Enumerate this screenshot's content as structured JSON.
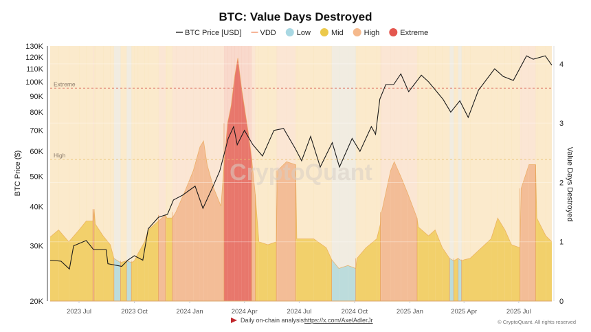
{
  "chart_data": {
    "type": "area",
    "title": "BTC: Value Days Destroyed",
    "legend": [
      {
        "label": "BTC Price [USD]",
        "color": "#111111",
        "kind": "line"
      },
      {
        "label": "VDD",
        "color": "#f08a5d",
        "kind": "line"
      },
      {
        "label": "Low",
        "color": "#a9d8e3",
        "kind": "dot"
      },
      {
        "label": "Mid",
        "color": "#ecc94b",
        "kind": "dot"
      },
      {
        "label": "High",
        "color": "#f5b98c",
        "kind": "dot"
      },
      {
        "label": "Extreme",
        "color": "#e4574f",
        "kind": "dot"
      }
    ],
    "legend_position": "top",
    "category_colors": {
      "low": "#bcdcdc",
      "mid": "#f2d06b",
      "high": "#f3bd97",
      "extreme": "#e8776c"
    },
    "background_color": "#fdf0e2",
    "y_left": {
      "label": "BTC Price ($)",
      "scale": "log",
      "range": [
        20000,
        130000
      ],
      "ticks": [
        "20K",
        "30K",
        "40K",
        "50K",
        "60K",
        "70K",
        "80K",
        "90K",
        "100K",
        "110K",
        "120K",
        "130K"
      ],
      "tick_values": [
        20000,
        30000,
        40000,
        50000,
        60000,
        70000,
        80000,
        90000,
        100000,
        110000,
        120000,
        130000
      ]
    },
    "y_right": {
      "label": "Value Days Destroyed",
      "range": [
        0,
        4.3
      ],
      "ticks": [
        "0",
        "1",
        "2",
        "3",
        "4"
      ],
      "tick_values": [
        0,
        1,
        2,
        3,
        4
      ]
    },
    "x": {
      "range": [
        "2023-05-14",
        "2025-08-25"
      ],
      "ticks": [
        "2023 Jul",
        "2023 Oct",
        "2024 Jan",
        "2024 Apr",
        "2024 Jul",
        "2024 Oct",
        "2025 Jan",
        "2025 Apr",
        "2025 Jul"
      ],
      "tick_dates": [
        "2023-07-01",
        "2023-10-01",
        "2024-01-01",
        "2024-04-01",
        "2024-07-01",
        "2024-10-01",
        "2025-01-01",
        "2025-04-01",
        "2025-07-01"
      ]
    },
    "reference_lines": [
      {
        "label": "Extreme",
        "value": 3.59,
        "color": "#e07a6a"
      },
      {
        "label": "High",
        "value": 2.39,
        "color": "#e8c070"
      }
    ],
    "watermark": "CryptoQuant",
    "series": [
      {
        "name": "BTC Price [USD]",
        "points": [
          [
            "2023-05-14",
            27000
          ],
          [
            "2023-06-01",
            26800
          ],
          [
            "2023-06-15",
            25300
          ],
          [
            "2023-06-22",
            30000
          ],
          [
            "2023-07-13",
            31200
          ],
          [
            "2023-07-25",
            29200
          ],
          [
            "2023-08-15",
            29200
          ],
          [
            "2023-08-18",
            26300
          ],
          [
            "2023-09-10",
            25800
          ],
          [
            "2023-09-20",
            27000
          ],
          [
            "2023-10-01",
            27900
          ],
          [
            "2023-10-15",
            27000
          ],
          [
            "2023-10-24",
            34000
          ],
          [
            "2023-11-10",
            37000
          ],
          [
            "2023-11-25",
            37800
          ],
          [
            "2023-12-05",
            42000
          ],
          [
            "2023-12-20",
            43500
          ],
          [
            "2024-01-10",
            46500
          ],
          [
            "2024-01-23",
            39500
          ],
          [
            "2024-02-10",
            47000
          ],
          [
            "2024-02-20",
            52000
          ],
          [
            "2024-03-05",
            66000
          ],
          [
            "2024-03-14",
            72000
          ],
          [
            "2024-03-20",
            63000
          ],
          [
            "2024-04-01",
            70000
          ],
          [
            "2024-04-15",
            63000
          ],
          [
            "2024-05-01",
            58000
          ],
          [
            "2024-05-20",
            70000
          ],
          [
            "2024-06-05",
            71000
          ],
          [
            "2024-06-25",
            61000
          ],
          [
            "2024-07-05",
            56000
          ],
          [
            "2024-07-20",
            67000
          ],
          [
            "2024-08-05",
            53500
          ],
          [
            "2024-08-25",
            64000
          ],
          [
            "2024-09-06",
            53500
          ],
          [
            "2024-09-27",
            66000
          ],
          [
            "2024-10-10",
            60000
          ],
          [
            "2024-10-29",
            72000
          ],
          [
            "2024-11-05",
            68000
          ],
          [
            "2024-11-12",
            88000
          ],
          [
            "2024-11-22",
            98000
          ],
          [
            "2024-12-05",
            98000
          ],
          [
            "2024-12-17",
            106000
          ],
          [
            "2024-12-30",
            93000
          ],
          [
            "2025-01-20",
            105000
          ],
          [
            "2025-02-01",
            100000
          ],
          [
            "2025-02-25",
            88000
          ],
          [
            "2025-03-10",
            80000
          ],
          [
            "2025-03-25",
            87000
          ],
          [
            "2025-04-08",
            77000
          ],
          [
            "2025-04-25",
            94000
          ],
          [
            "2025-05-22",
            110000
          ],
          [
            "2025-06-05",
            104000
          ],
          [
            "2025-06-22",
            101000
          ],
          [
            "2025-07-14",
            121000
          ],
          [
            "2025-07-25",
            118000
          ],
          [
            "2025-08-14",
            121000
          ],
          [
            "2025-08-25",
            113000
          ]
        ]
      },
      {
        "name": "VDD",
        "points": [
          [
            "2023-05-14",
            1.08,
            "mid"
          ],
          [
            "2023-05-28",
            1.2,
            "mid"
          ],
          [
            "2023-06-14",
            1.0,
            "mid"
          ],
          [
            "2023-07-01",
            1.2,
            "mid"
          ],
          [
            "2023-07-13",
            1.35,
            "mid"
          ],
          [
            "2023-07-24",
            1.35,
            "mid"
          ],
          [
            "2023-07-26",
            1.55,
            "high"
          ],
          [
            "2023-07-28",
            1.3,
            "mid"
          ],
          [
            "2023-08-10",
            1.1,
            "mid"
          ],
          [
            "2023-08-22",
            0.95,
            "mid"
          ],
          [
            "2023-08-28",
            0.72,
            "mid"
          ],
          [
            "2023-09-08",
            0.65,
            "low"
          ],
          [
            "2023-09-18",
            0.68,
            "mid"
          ],
          [
            "2023-09-26",
            0.65,
            "low"
          ],
          [
            "2023-10-01",
            0.68,
            "mid"
          ],
          [
            "2023-10-07",
            0.8,
            "mid"
          ],
          [
            "2023-10-18",
            1.0,
            "mid"
          ],
          [
            "2023-10-24",
            1.2,
            "mid"
          ],
          [
            "2023-11-10",
            1.35,
            "mid"
          ],
          [
            "2023-11-22",
            1.45,
            "high"
          ],
          [
            "2023-11-24",
            1.4,
            "mid"
          ],
          [
            "2023-12-03",
            1.4,
            "mid"
          ],
          [
            "2023-12-09",
            1.5,
            "high"
          ],
          [
            "2023-12-26",
            1.9,
            "high"
          ],
          [
            "2024-01-07",
            2.2,
            "high"
          ],
          [
            "2024-01-18",
            2.6,
            "high"
          ],
          [
            "2024-01-24",
            2.7,
            "high"
          ],
          [
            "2024-01-30",
            2.3,
            "high"
          ],
          [
            "2024-02-10",
            1.9,
            "high"
          ],
          [
            "2024-02-22",
            1.6,
            "high"
          ],
          [
            "2024-02-27",
            2.3,
            "high"
          ],
          [
            "2024-03-04",
            3.0,
            "extreme"
          ],
          [
            "2024-03-10",
            3.3,
            "extreme"
          ],
          [
            "2024-03-16",
            3.8,
            "extreme"
          ],
          [
            "2024-03-21",
            4.1,
            "extreme"
          ],
          [
            "2024-03-27",
            3.6,
            "extreme"
          ],
          [
            "2024-04-02",
            3.2,
            "extreme"
          ],
          [
            "2024-04-08",
            2.8,
            "extreme"
          ],
          [
            "2024-04-13",
            2.4,
            "extreme"
          ],
          [
            "2024-04-19",
            1.8,
            "high"
          ],
          [
            "2024-04-25",
            1.0,
            "mid"
          ],
          [
            "2024-05-10",
            0.95,
            "mid"
          ],
          [
            "2024-05-24",
            1.0,
            "mid"
          ],
          [
            "2024-05-26",
            2.2,
            "high"
          ],
          [
            "2024-06-10",
            2.35,
            "high"
          ],
          [
            "2024-06-25",
            2.3,
            "high"
          ],
          [
            "2024-06-27",
            1.05,
            "mid"
          ],
          [
            "2024-07-25",
            1.05,
            "mid"
          ],
          [
            "2024-08-15",
            0.9,
            "mid"
          ],
          [
            "2024-08-24",
            0.7,
            "mid"
          ],
          [
            "2024-09-05",
            0.55,
            "low"
          ],
          [
            "2024-09-20",
            0.6,
            "low"
          ],
          [
            "2024-10-03",
            0.55,
            "low"
          ],
          [
            "2024-10-05",
            0.72,
            "mid"
          ],
          [
            "2024-10-20",
            0.9,
            "mid"
          ],
          [
            "2024-11-07",
            1.05,
            "mid"
          ],
          [
            "2024-11-13",
            1.3,
            "mid"
          ],
          [
            "2024-11-15",
            1.5,
            "high"
          ],
          [
            "2024-11-30",
            2.2,
            "high"
          ],
          [
            "2024-12-06",
            2.35,
            "high"
          ],
          [
            "2024-12-17",
            2.1,
            "high"
          ],
          [
            "2024-12-29",
            1.8,
            "high"
          ],
          [
            "2025-01-13",
            1.4,
            "high"
          ],
          [
            "2025-01-15",
            1.25,
            "mid"
          ],
          [
            "2025-02-01",
            1.1,
            "mid"
          ],
          [
            "2025-02-12",
            1.2,
            "mid"
          ],
          [
            "2025-02-24",
            0.9,
            "mid"
          ],
          [
            "2025-03-08",
            0.72,
            "mid"
          ],
          [
            "2025-03-15",
            0.68,
            "low"
          ],
          [
            "2025-03-22",
            0.72,
            "mid"
          ],
          [
            "2025-03-28",
            0.68,
            "low"
          ],
          [
            "2025-04-02",
            0.7,
            "mid"
          ],
          [
            "2025-04-11",
            0.72,
            "mid"
          ],
          [
            "2025-05-16",
            1.05,
            "mid"
          ],
          [
            "2025-05-27",
            1.4,
            "mid"
          ],
          [
            "2025-06-08",
            1.2,
            "mid"
          ],
          [
            "2025-06-19",
            0.95,
            "mid"
          ],
          [
            "2025-07-03",
            0.9,
            "mid"
          ],
          [
            "2025-07-05",
            1.9,
            "high"
          ],
          [
            "2025-07-18",
            2.3,
            "high"
          ],
          [
            "2025-07-29",
            2.3,
            "high"
          ],
          [
            "2025-07-31",
            1.4,
            "mid"
          ],
          [
            "2025-08-15",
            1.1,
            "mid"
          ],
          [
            "2025-08-25",
            1.0,
            "mid"
          ]
        ]
      }
    ]
  },
  "footer": {
    "analysis_prefix": "Daily on-chain analysis:",
    "analysis_link": "https://x.com/AxelAdlerJr",
    "copyright": "© CryptoQuant. All rights reserved"
  }
}
